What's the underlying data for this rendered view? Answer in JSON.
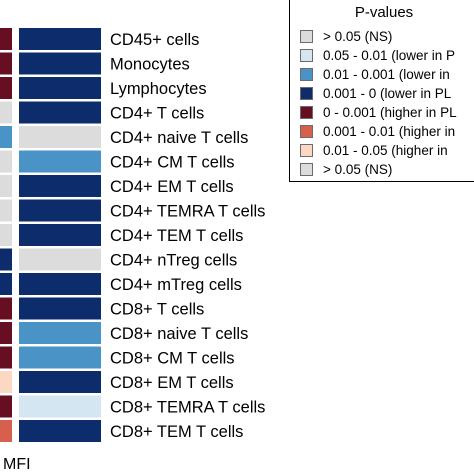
{
  "chart_data": {
    "type": "heatmap",
    "legend_title": "P-values",
    "legend_position": "top-right",
    "x_tick_label": "MFI",
    "categories": [
      "CD45+ cells",
      "Monocytes",
      "Lymphocytes",
      "CD4+ T cells",
      "CD4+ naive T cells",
      "CD4+ CM T cells",
      "CD4+ EM T cells",
      "CD4+ TEMRA T cells",
      "CD4+ TEM T cells",
      "CD4+ nTreg cells",
      "CD4+ mTreg cells",
      "CD8+ T cells",
      "CD8+ naive T cells",
      "CD8+ CM T cells",
      "CD8+ EM T cells",
      "CD8+ TEMRA T cells",
      "CD8+ TEM T cells"
    ],
    "levels": [
      {
        "label": "> 0.05 (NS)",
        "color": "#dcdcdc"
      },
      {
        "label": "0.05 - 0.01 (lower in P",
        "color": "#d4e6f1"
      },
      {
        "label": "0.01 - 0.001 (lower in",
        "color": "#4a93c6"
      },
      {
        "label": "0.001 - 0 (lower in PL",
        "color": "#0d2c6b"
      },
      {
        "label": "0 - 0.001 (higher in PL",
        "color": "#660e22"
      },
      {
        "label": "0.001 - 0.01 (higher in",
        "color": "#d6604d"
      },
      {
        "label": "0.01 - 0.05 (higher in",
        "color": "#fbd8c4"
      },
      {
        "label": "> 0.05 (NS)",
        "color": "#dcdcdc"
      }
    ],
    "columns": [
      {
        "cells": [
          4,
          4,
          4,
          0,
          2,
          0,
          0,
          0,
          0,
          3,
          3,
          4,
          4,
          4,
          6,
          4,
          5
        ]
      },
      {
        "cells": [
          3,
          3,
          3,
          3,
          0,
          2,
          3,
          3,
          3,
          0,
          3,
          3,
          2,
          2,
          3,
          1,
          3
        ]
      }
    ]
  }
}
